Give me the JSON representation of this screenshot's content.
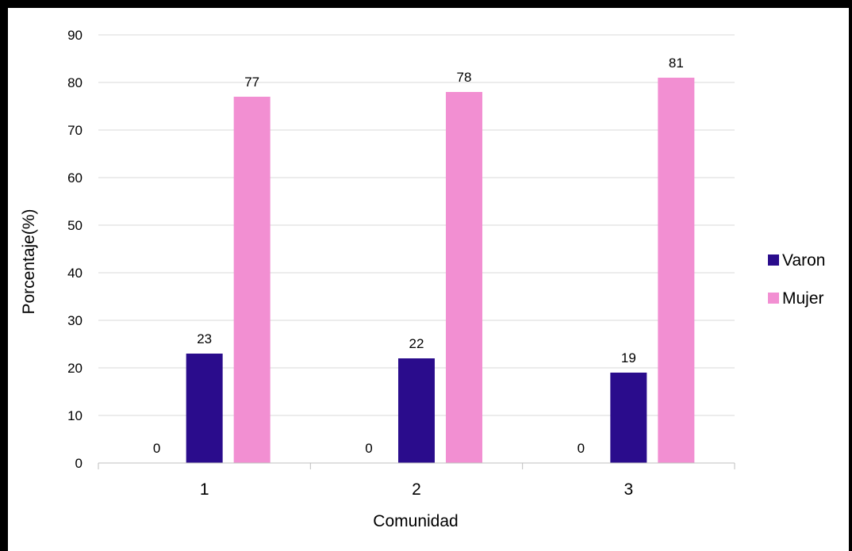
{
  "colors": {
    "varon": "#2a0c8c",
    "mujer": "#f28fd2",
    "grid": "#d9d9d9",
    "axis": "#bfbfbf"
  },
  "chart_data": {
    "type": "bar",
    "categories": [
      "1",
      "2",
      "3"
    ],
    "series": [
      {
        "name": "",
        "values": [
          0,
          0,
          0
        ],
        "color": "#ffffff"
      },
      {
        "name": "Varon",
        "values": [
          23,
          22,
          19
        ],
        "color": "#2a0c8c"
      },
      {
        "name": "Mujer",
        "values": [
          77,
          78,
          81
        ],
        "color": "#f28fd2"
      }
    ],
    "xlabel": "Comunidad",
    "ylabel": "Porcentaje(%)",
    "ylim": [
      0,
      90
    ],
    "yticks": [
      0,
      10,
      20,
      30,
      40,
      50,
      60,
      70,
      80,
      90
    ],
    "grid": true,
    "legend": "right",
    "data_labels": true
  }
}
